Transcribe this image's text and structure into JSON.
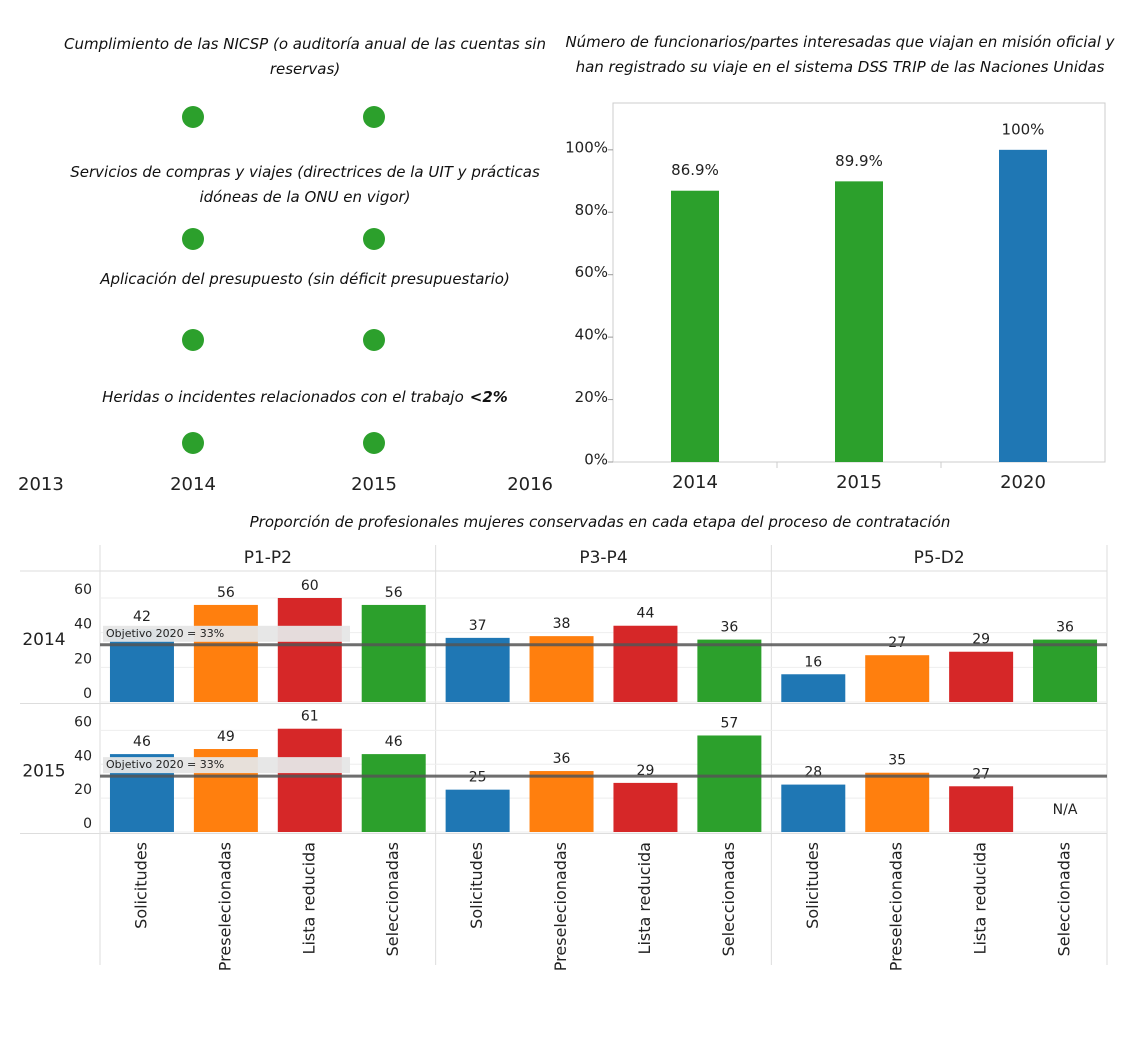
{
  "chart_data": [
    {
      "type": "dot",
      "rows": [
        {
          "label": "Cumplimiento de las NICSP (o auditoría anual de las cuentas sin reservas)",
          "x": [
            2014,
            2015
          ]
        },
        {
          "label": "Servicios de compras y viajes (directrices de la UIT y prácticas idóneas de la ONU en vigor)",
          "x": [
            2014,
            2015
          ]
        },
        {
          "label": "Aplicación del presupuesto (sin déficit presupuestario)",
          "x": [
            2014,
            2015
          ]
        },
        {
          "label": "Heridas o incidentes relacionados con el trabajo",
          "note": "<2%",
          "x": [
            2014,
            2015
          ]
        }
      ],
      "color": "#2ca02c",
      "xlim": [
        2013,
        2016
      ],
      "xticks": [
        2013,
        2014,
        2015,
        2016
      ]
    },
    {
      "type": "bar",
      "title": "Número de funcionarios/partes interesadas que viajan en misión oficial y han registrado su viaje en el sistema DSS TRIP de las Naciones Unidas",
      "categories": [
        "2014",
        "2015",
        "2020"
      ],
      "values": [
        86.9,
        89.9,
        100
      ],
      "value_labels": [
        "86.9%",
        "89.9%",
        "100%"
      ],
      "colors": [
        "#2ca02c",
        "#2ca02c",
        "#1f77b4"
      ],
      "ylim": [
        0,
        115
      ],
      "yticks": [
        {
          "value": 0,
          "label": "0%"
        },
        {
          "value": 20,
          "label": "20%"
        },
        {
          "value": 40,
          "label": "40%"
        },
        {
          "value": 60,
          "label": "60%"
        },
        {
          "value": 80,
          "label": "80%"
        },
        {
          "value": 100,
          "label": "100%"
        }
      ]
    },
    {
      "type": "faceted_bar",
      "title": "Proporción de profesionales mujeres conservadas en cada etapa del proceso de contratación",
      "columns": [
        "P1-P2",
        "P3-P4",
        "P5-D2"
      ],
      "categories": [
        "Solicitudes",
        "Preselecionadas",
        "Lista reducida",
        "Seleccionadas"
      ],
      "colors": [
        "#1f77b4",
        "#ff7f0e",
        "#d62728",
        "#2ca02c"
      ],
      "rows": [
        {
          "name": "2014",
          "values": [
            [
              42,
              56,
              60,
              56
            ],
            [
              37,
              38,
              44,
              36
            ],
            [
              16,
              27,
              29,
              36
            ]
          ]
        },
        {
          "name": "2015",
          "values": [
            [
              46,
              49,
              61,
              46
            ],
            [
              25,
              36,
              29,
              57
            ],
            [
              28,
              35,
              27,
              null
            ]
          ]
        }
      ],
      "missing_label": "N/A",
      "target": {
        "value": 33,
        "label": "Objetivo 2020 = 33%"
      },
      "ylim": [
        0,
        75
      ],
      "yticks": [
        0,
        20,
        40,
        60
      ]
    }
  ]
}
